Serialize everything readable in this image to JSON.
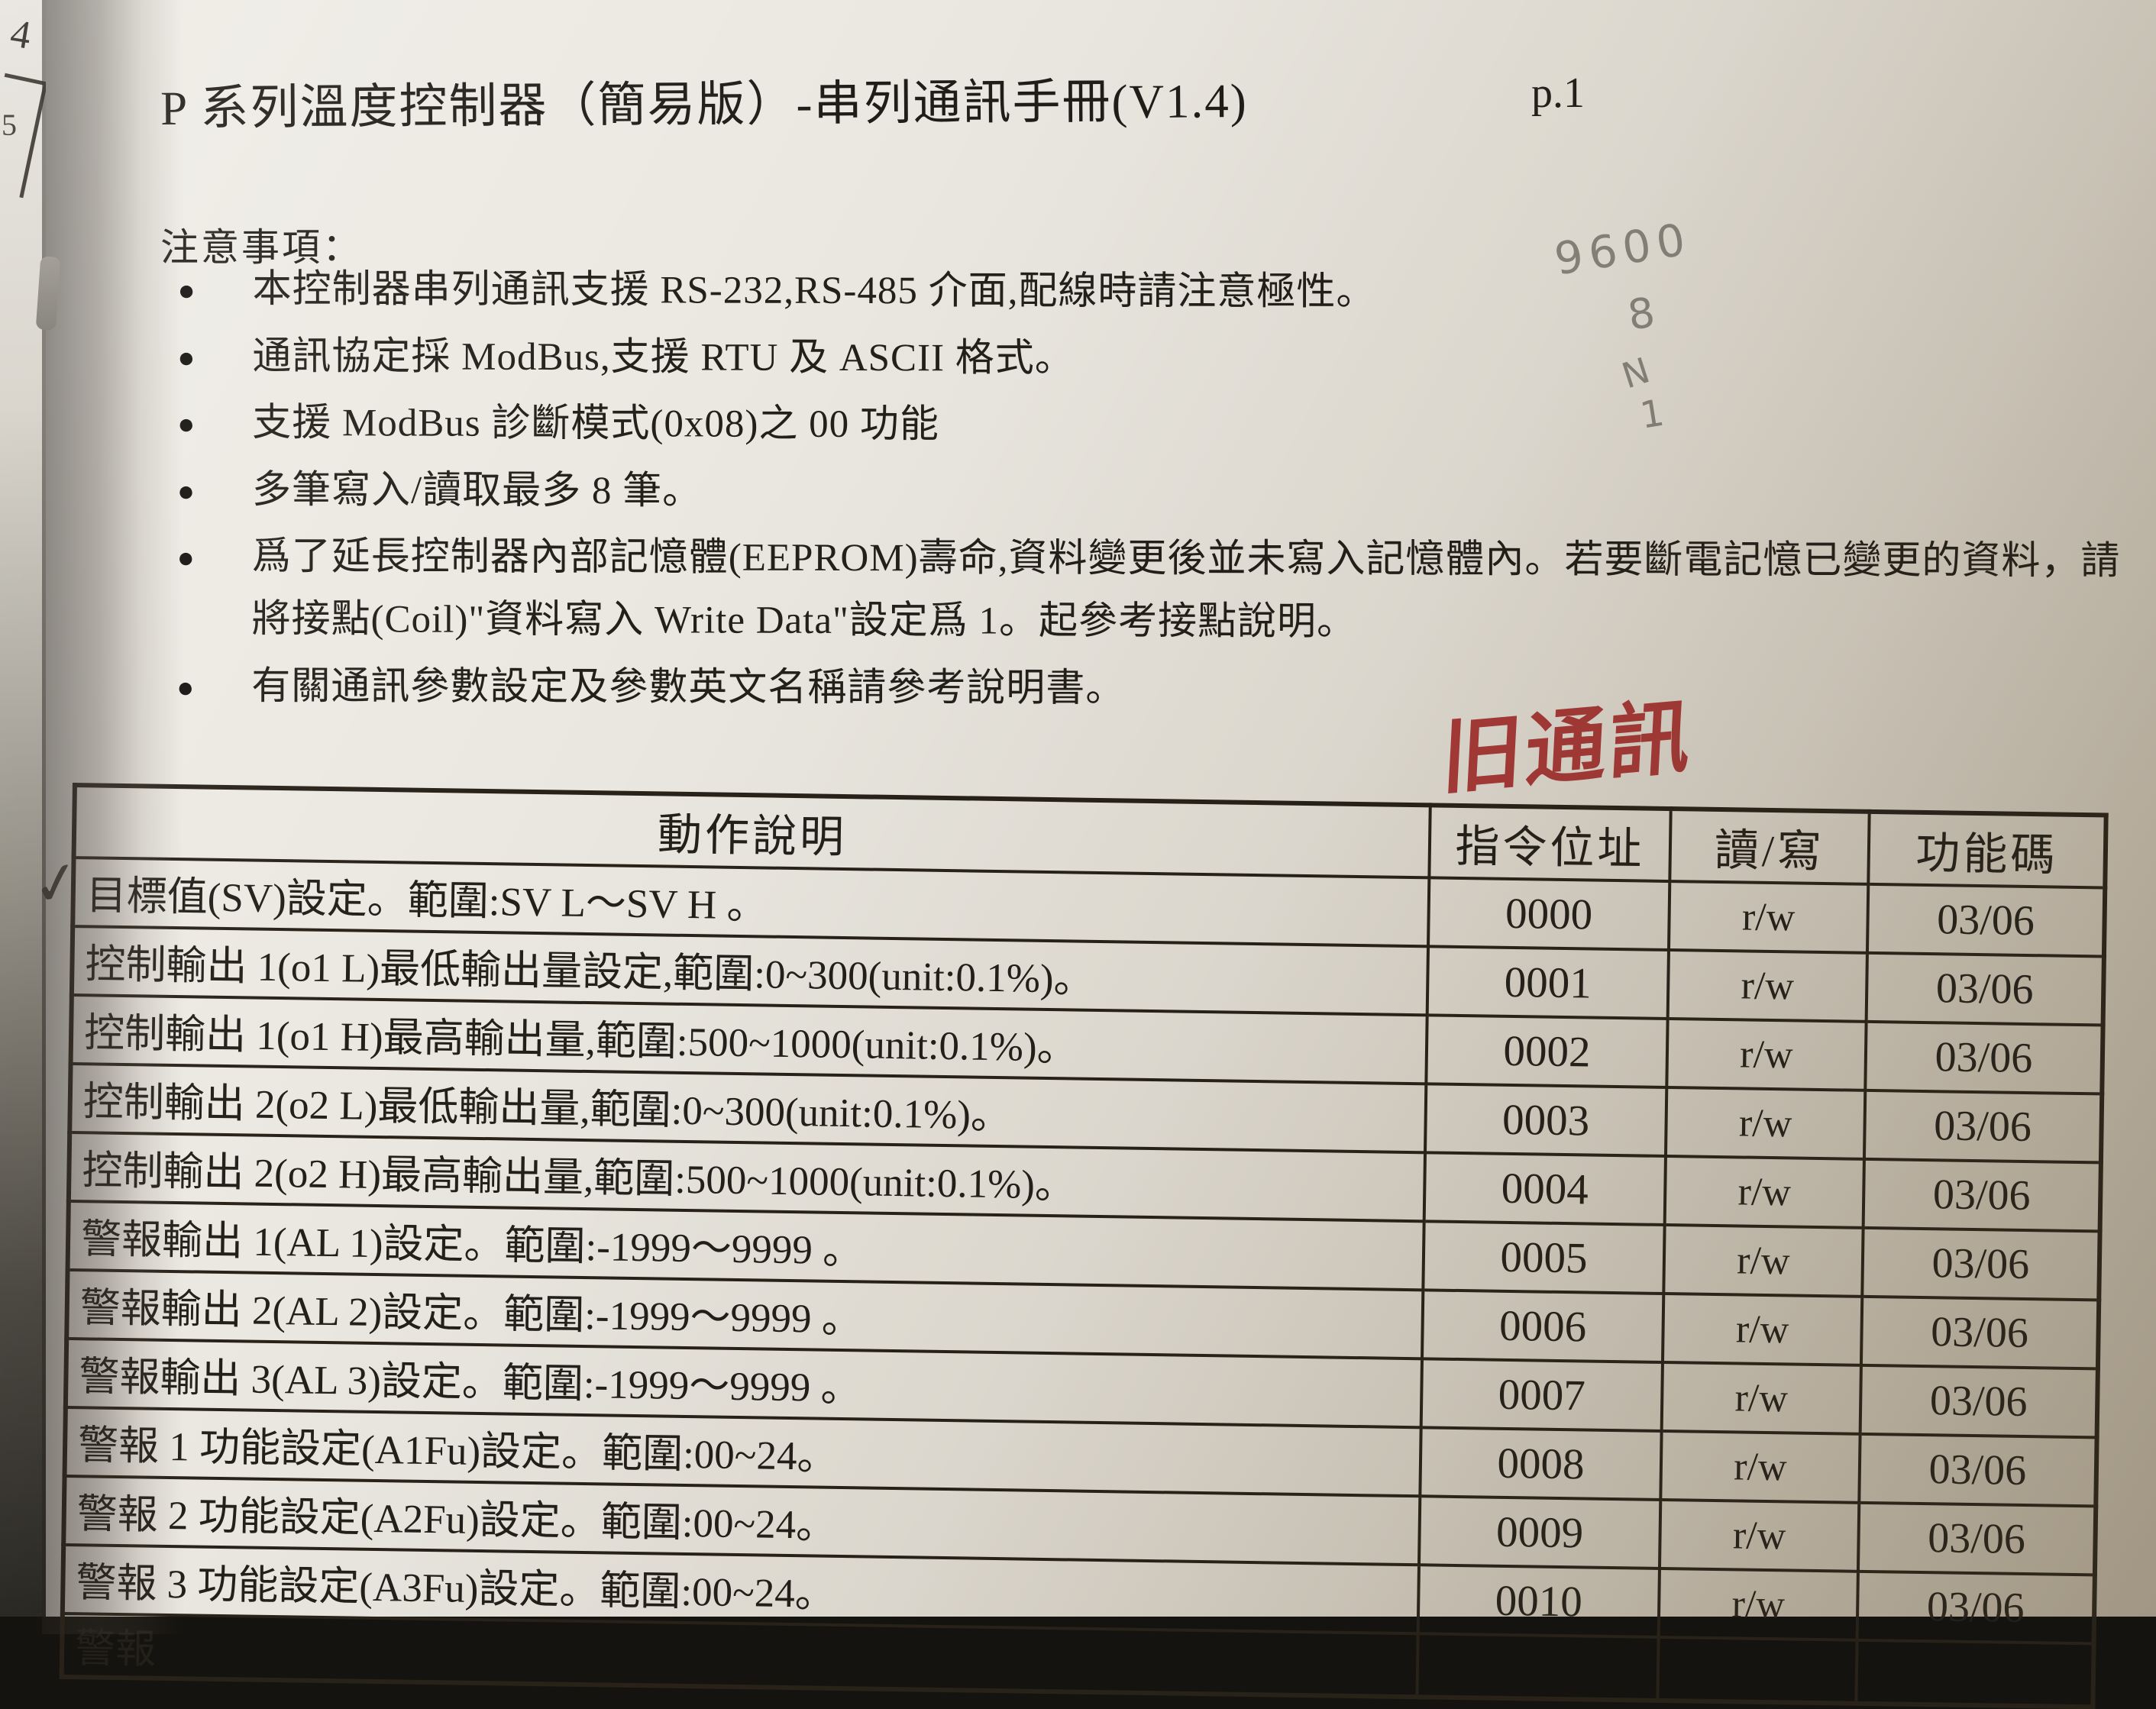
{
  "document": {
    "title": "P 系列溫度控制器（簡易版）-串列通訊手冊(V1.4)",
    "page_label": "p.1",
    "section_heading": "注意事項：",
    "bullet_glyph": "●",
    "notes": [
      "本控制器串列通訊支援 RS-232,RS-485 介面,配線時請注意極性。",
      "通訊協定採 ModBus,支援 RTU 及 ASCII 格式。",
      "支援 ModBus 診斷模式(0x08)之 00 功能",
      "多筆寫入/讀取最多 8 筆。",
      "爲了延長控制器內部記憶體(EEPROM)壽命,資料變更後並未寫入記憶體內。若要斷電記憶已變更的資料，請將接點(Coil)\"資料寫入 Write Data\"設定爲 1。起參考接點說明。",
      "有關通訊參數設定及參數英文名稱請參考說明書。"
    ]
  },
  "table": {
    "headers": {
      "desc": "動作說明",
      "addr": "指令位址",
      "rw": "讀/寫",
      "code": "功能碼"
    },
    "rows": [
      {
        "desc": "目標值(SV)設定。範圍:SV L～SV H 。",
        "addr": "0000",
        "rw": "r/w",
        "code": "03/06"
      },
      {
        "desc": "控制輸出 1(o1 L)最低輸出量設定,範圍:0~300(unit:0.1%)。",
        "addr": "0001",
        "rw": "r/w",
        "code": "03/06"
      },
      {
        "desc": "控制輸出 1(o1 H)最高輸出量,範圍:500~1000(unit:0.1%)。",
        "addr": "0002",
        "rw": "r/w",
        "code": "03/06"
      },
      {
        "desc": "控制輸出 2(o2 L)最低輸出量,範圍:0~300(unit:0.1%)。",
        "addr": "0003",
        "rw": "r/w",
        "code": "03/06"
      },
      {
        "desc": "控制輸出 2(o2 H)最高輸出量,範圍:500~1000(unit:0.1%)。",
        "addr": "0004",
        "rw": "r/w",
        "code": "03/06"
      },
      {
        "desc": "警報輸出 1(AL 1)設定。範圍:-1999～9999 。",
        "addr": "0005",
        "rw": "r/w",
        "code": "03/06"
      },
      {
        "desc": "警報輸出 2(AL 2)設定。範圍:-1999～9999 。",
        "addr": "0006",
        "rw": "r/w",
        "code": "03/06"
      },
      {
        "desc": "警報輸出 3(AL 3)設定。範圍:-1999～9999 。",
        "addr": "0007",
        "rw": "r/w",
        "code": "03/06"
      },
      {
        "desc": "警報 1 功能設定(A1Fu)設定。範圍:00~24。",
        "addr": "0008",
        "rw": "r/w",
        "code": "03/06"
      },
      {
        "desc": "警報 2 功能設定(A2Fu)設定。範圍:00~24。",
        "addr": "0009",
        "rw": "r/w",
        "code": "03/06"
      },
      {
        "desc": "警報 3 功能設定(A3Fu)設定。範圍:00~24。",
        "addr": "0010",
        "rw": "r/w",
        "code": "03/06"
      },
      {
        "desc": "警報",
        "addr": "",
        "rw": "",
        "code": ""
      }
    ]
  },
  "annotations": {
    "red_note": "旧通訊",
    "pencil_note": [
      "9600",
      "8",
      "N",
      "1"
    ],
    "checkmark": "✓"
  },
  "underlay": {
    "page_number": "4",
    "table_fragment": "5"
  },
  "colors": {
    "paper": "#eae7e0",
    "ink": "#23201a",
    "red_ink": "#a93a38",
    "pencil": "#87847c"
  }
}
